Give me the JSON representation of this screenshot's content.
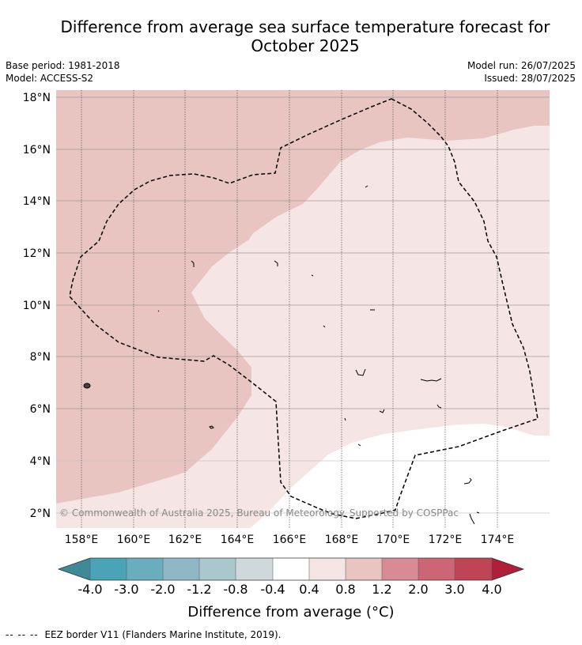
{
  "title_line1": "Difference from average sea surface temperature forecast for",
  "title_line2": "October 2025",
  "base_period": "Base period: 1981-2018",
  "model": "Model: ACCESS-S2",
  "model_run": "Model run: 26/07/2025",
  "issued": "Issued: 28/07/2025",
  "copyright": "© Commonwealth of Australia 2025, Bureau of Meteorology. Supported by COSPPac",
  "lon_labels": [
    "158°E",
    "160°E",
    "162°E",
    "164°E",
    "166°E",
    "168°E",
    "170°E",
    "172°E",
    "174°E"
  ],
  "lat_labels": [
    "18°N",
    "16°N",
    "14°N",
    "12°N",
    "10°N",
    "8°N",
    "6°N",
    "4°N",
    "2°N"
  ],
  "colorbar": {
    "label": "Difference from average (°C)",
    "tick_labels": [
      "-4.0",
      "-3.0",
      "-2.0",
      "-1.2",
      "-0.8",
      "-0.4",
      "0.4",
      "0.8",
      "1.2",
      "2.0",
      "3.0",
      "4.0"
    ],
    "colors": [
      "#3f8a99",
      "#4aa3b6",
      "#6aaebe",
      "#8eb9c4",
      "#a9c7cc",
      "#cfd9dc",
      "#ffffff",
      "#f5e5e4",
      "#e8c5c1",
      "#d98b95",
      "#cc6674",
      "#bf4456",
      "#b01f3a"
    ]
  },
  "legend_footnote": {
    "line_style": "--  --  --",
    "text": "EEZ border V11 (Flanders Marine Institute, 2019)."
  },
  "map_fills": {
    "band_0.8_1.2": "#e8c5c1",
    "band_0.4_0.8": "#f5e5e4",
    "band_-0.4_0.4": "#ffffff"
  }
}
